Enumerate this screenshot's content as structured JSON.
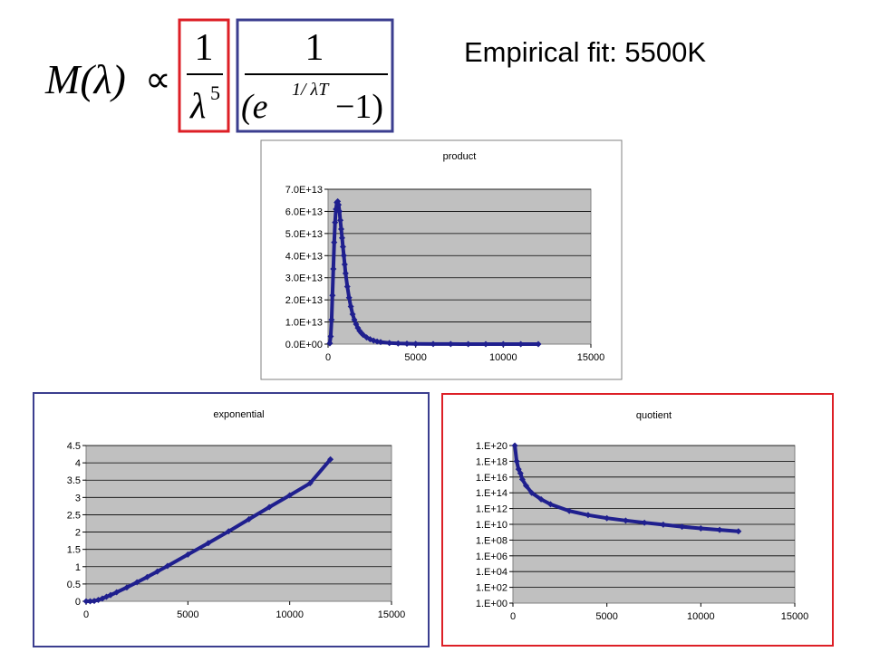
{
  "slide": {
    "fit_title": "Empirical fit: 5500K",
    "colors": {
      "left_box": "#dd1f26",
      "right_box": "#3b3e8f",
      "series": "#1f1f8e",
      "plot_bg": "#c0c0c0"
    }
  },
  "formula": {
    "lhs": "M(λ)",
    "proportional": "∝",
    "left_fraction": {
      "numerator": "1",
      "denominator_base": "λ",
      "denominator_exp": "5"
    },
    "right_fraction": {
      "numerator": "1",
      "denominator_open": "(e",
      "exp": "1/ λT",
      "denominator_close": "−1)"
    }
  },
  "chart_data": [
    {
      "id": "product",
      "type": "scatter",
      "title": "product",
      "border_color": "#808080",
      "xlim": [
        0,
        15000
      ],
      "ylim": [
        0,
        70000000000000.0
      ],
      "xticks": [
        "0",
        "5000",
        "10000",
        "15000"
      ],
      "yticks": [
        "0.0E+00",
        "1.0E+13",
        "2.0E+13",
        "3.0E+13",
        "4.0E+13",
        "5.0E+13",
        "6.0E+13",
        "7.0E+13"
      ],
      "grid": true,
      "series": [
        {
          "x": [
            100,
            150,
            200,
            250,
            300,
            350,
            400,
            450,
            500,
            550,
            600,
            650,
            700,
            750,
            800,
            850,
            900,
            950,
            1000,
            1100,
            1200,
            1300,
            1400,
            1500,
            1600,
            1700,
            1800,
            1900,
            2000,
            2200,
            2400,
            2600,
            2800,
            3000,
            3500,
            4000,
            4500,
            5000,
            6000,
            7000,
            8000,
            9000,
            10000,
            11000,
            12000
          ],
          "y": [
            350000000000.0,
            3500000000000.0,
            11000000000000.0,
            22000000000000.0,
            34000000000000.0,
            46000000000000.0,
            55000000000000.0,
            61000000000000.0,
            64000000000000.0,
            64500000000000.0,
            63000000000000.0,
            60000000000000.0,
            56000000000000.0,
            52000000000000.0,
            48000000000000.0,
            44000000000000.0,
            40000000000000.0,
            36000000000000.0,
            32000000000000.0,
            26000000000000.0,
            21000000000000.0,
            17000000000000.0,
            13500000000000.0,
            11000000000000.0,
            9000000000000.0,
            7300000000000.0,
            6000000000000.0,
            5000000000000.0,
            4200000000000.0,
            3000000000000.0,
            2200000000000.0,
            1600000000000.0,
            1200000000000.0,
            900000000000.0,
            500000000000.0,
            300000000000.0,
            190000000000.0,
            120000000000.0,
            60000000000.0,
            30000000000.0,
            18000000000.0,
            11000000000.0,
            7000000000.0,
            5000000000.0,
            3500000000.0
          ]
        }
      ]
    },
    {
      "id": "exponential",
      "type": "scatter",
      "title": "exponential",
      "border_color": "#3b3e8f",
      "xlim": [
        0,
        15000
      ],
      "ylim": [
        0,
        4.5
      ],
      "xticks": [
        "0",
        "5000",
        "10000",
        "15000"
      ],
      "yticks": [
        "0",
        "0.5",
        "1",
        "1.5",
        "2",
        "2.5",
        "3",
        "3.5",
        "4",
        "4.5"
      ],
      "grid": true,
      "series": [
        {
          "x": [
            0,
            200,
            400,
            600,
            800,
            1000,
            1200,
            1500,
            2000,
            2500,
            3000,
            3500,
            4000,
            5000,
            6000,
            7000,
            8000,
            9000,
            10000,
            11000,
            12000
          ],
          "y": [
            0,
            0.001,
            0.01,
            0.04,
            0.08,
            0.13,
            0.18,
            0.26,
            0.4,
            0.55,
            0.7,
            0.86,
            1.02,
            1.35,
            1.68,
            2.02,
            2.37,
            2.72,
            3.06,
            3.41,
            4.1
          ]
        }
      ]
    },
    {
      "id": "quotient",
      "type": "scatter",
      "title": "quotient",
      "border_color": "#dd1f26",
      "xlim": [
        0,
        15000
      ],
      "ylim": [
        0,
        20
      ],
      "y_scale": "log",
      "xticks": [
        "0",
        "5000",
        "10000",
        "15000"
      ],
      "yticks": [
        "1.E+00",
        "1.E+02",
        "1.E+04",
        "1.E+06",
        "1.E+08",
        "1.E+10",
        "1.E+12",
        "1.E+14",
        "1.E+16",
        "1.E+18",
        "1.E+20"
      ],
      "grid": true,
      "series": [
        {
          "x": [
            100,
            200,
            300,
            400,
            500,
            700,
            1000,
            1500,
            2000,
            3000,
            4000,
            5000,
            6000,
            7000,
            8000,
            9000,
            10000,
            11000,
            12000
          ],
          "y": [
            1e+20,
            1e+18,
            1e+17,
            3e+16,
            5000000000000000.0,
            800000000000000.0,
            100000000000000.0,
            15000000000000.0,
            3500000000000.0,
            500000000000.0,
            150000000000.0,
            60000000000.0,
            30000000000.0,
            16000000000.0,
            9000000000.0,
            5000000000.0,
            3000000000.0,
            2000000000.0,
            1300000000.0
          ]
        }
      ]
    }
  ]
}
